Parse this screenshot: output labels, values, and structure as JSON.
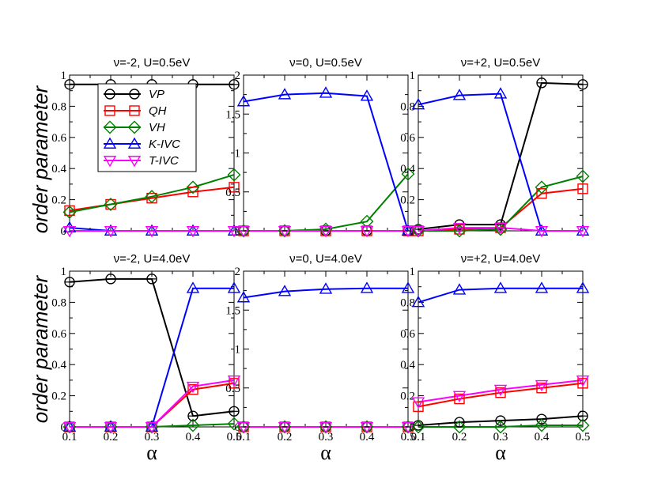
{
  "chart_data": {
    "type": "line",
    "x": [
      0.1,
      0.2,
      0.3,
      0.4,
      0.5
    ],
    "x_tick_labels": [
      "0.1",
      "0.2",
      "0.3",
      "0.4",
      "0.5"
    ],
    "xlabel": "α",
    "ylabel": "order parameter",
    "legend": {
      "placement": "top-left of first panel",
      "entries": [
        {
          "name": "VP",
          "color": "#000000",
          "marker": "circle"
        },
        {
          "name": "QH",
          "color": "#ff0000",
          "marker": "square"
        },
        {
          "name": "VH",
          "color": "#008000",
          "marker": "diamond"
        },
        {
          "name": "K-IVC",
          "color": "#0000ff",
          "marker": "triangle-up"
        },
        {
          "name": "T-IVC",
          "color": "#ff00ff",
          "marker": "triangle-down"
        }
      ]
    },
    "panels": [
      {
        "title": "ν=-2, U=0.5eV",
        "ylim": [
          0,
          1
        ],
        "y_ticks": [
          "0",
          "0.2",
          "0.4",
          "0.6",
          "0.8",
          "1"
        ],
        "y_tick_values": [
          0,
          0.2,
          0.4,
          0.6,
          0.8,
          1
        ],
        "series": [
          {
            "name": "VP",
            "values": [
              0.94,
              0.94,
              0.94,
              0.94,
              0.94
            ]
          },
          {
            "name": "QH",
            "values": [
              0.13,
              0.17,
              0.21,
              0.25,
              0.28
            ]
          },
          {
            "name": "VH",
            "values": [
              0.12,
              0.17,
              0.22,
              0.28,
              0.36
            ]
          },
          {
            "name": "K-IVC",
            "values": [
              0.02,
              0.0,
              0.0,
              0.0,
              0.0
            ]
          },
          {
            "name": "T-IVC",
            "values": [
              0.0,
              0.0,
              0.0,
              0.0,
              0.0
            ]
          }
        ]
      },
      {
        "title": "ν=0, U=0.5eV",
        "ylim": [
          0,
          2
        ],
        "y_ticks": [
          "0",
          "0.5",
          "1",
          "1.5",
          "2"
        ],
        "y_tick_values": [
          0,
          0.5,
          1,
          1.5,
          2
        ],
        "series": [
          {
            "name": "VP",
            "values": [
              0.0,
              0.0,
              0.0,
              0.0,
              0.0
            ]
          },
          {
            "name": "QH",
            "values": [
              0.0,
              0.0,
              0.0,
              0.0,
              0.0
            ]
          },
          {
            "name": "VH",
            "values": [
              0.0,
              0.0,
              0.02,
              0.12,
              0.73
            ]
          },
          {
            "name": "K-IVC",
            "values": [
              1.66,
              1.75,
              1.77,
              1.73,
              0.0
            ]
          },
          {
            "name": "T-IVC",
            "values": [
              0.0,
              0.0,
              0.0,
              0.0,
              0.0
            ]
          }
        ]
      },
      {
        "title": "ν=+2, U=0.5eV",
        "ylim": [
          0,
          1
        ],
        "y_ticks": [
          "0",
          "0.2",
          "0.4",
          "0.6",
          "0.8",
          "1"
        ],
        "y_tick_values": [
          0,
          0.2,
          0.4,
          0.6,
          0.8,
          1
        ],
        "series": [
          {
            "name": "VP",
            "values": [
              0.01,
              0.04,
              0.04,
              0.95,
              0.94
            ]
          },
          {
            "name": "QH",
            "values": [
              0.0,
              0.01,
              0.02,
              0.24,
              0.27
            ]
          },
          {
            "name": "VH",
            "values": [
              0.0,
              0.0,
              0.01,
              0.28,
              0.35
            ]
          },
          {
            "name": "K-IVC",
            "values": [
              0.81,
              0.87,
              0.88,
              0.0,
              0.0
            ]
          },
          {
            "name": "T-IVC",
            "values": [
              0.0,
              0.02,
              0.02,
              0.0,
              0.0
            ]
          }
        ]
      },
      {
        "title": "ν=-2, U=4.0eV",
        "ylim": [
          0,
          1
        ],
        "y_ticks": [
          "0",
          "0.2",
          "0.4",
          "0.6",
          "0.8",
          "1"
        ],
        "y_tick_values": [
          0,
          0.2,
          0.4,
          0.6,
          0.8,
          1
        ],
        "series": [
          {
            "name": "VP",
            "values": [
              0.93,
              0.95,
              0.95,
              0.07,
              0.1
            ]
          },
          {
            "name": "QH",
            "values": [
              0.0,
              0.0,
              0.0,
              0.24,
              0.28
            ]
          },
          {
            "name": "VH",
            "values": [
              0.0,
              0.0,
              0.0,
              0.01,
              0.02
            ]
          },
          {
            "name": "K-IVC",
            "values": [
              0.0,
              0.0,
              0.0,
              0.89,
              0.89
            ]
          },
          {
            "name": "T-IVC",
            "values": [
              0.0,
              0.0,
              0.0,
              0.26,
              0.3
            ]
          }
        ]
      },
      {
        "title": "ν=0, U=4.0eV",
        "ylim": [
          0,
          2
        ],
        "y_ticks": [
          "0",
          "0.5",
          "1",
          "1.5",
          "2"
        ],
        "y_tick_values": [
          0,
          0.5,
          1,
          1.5,
          2
        ],
        "series": [
          {
            "name": "VP",
            "values": [
              0.0,
              0.0,
              0.0,
              0.0,
              0.0
            ]
          },
          {
            "name": "QH",
            "values": [
              0.0,
              0.0,
              0.0,
              0.0,
              0.0
            ]
          },
          {
            "name": "VH",
            "values": [
              0.0,
              0.0,
              0.0,
              0.0,
              0.0
            ]
          },
          {
            "name": "K-IVC",
            "values": [
              1.66,
              1.74,
              1.77,
              1.78,
              1.78
            ]
          },
          {
            "name": "T-IVC",
            "values": [
              0.0,
              0.0,
              0.0,
              0.0,
              0.0
            ]
          }
        ]
      },
      {
        "title": "ν=+2, U=4.0eV",
        "ylim": [
          0,
          1
        ],
        "y_ticks": [
          "0",
          "0.2",
          "0.4",
          "0.6",
          "0.8",
          "1"
        ],
        "y_tick_values": [
          0,
          0.2,
          0.4,
          0.6,
          0.8,
          1
        ],
        "series": [
          {
            "name": "VP",
            "values": [
              0.01,
              0.03,
              0.04,
              0.05,
              0.07
            ]
          },
          {
            "name": "QH",
            "values": [
              0.13,
              0.18,
              0.22,
              0.25,
              0.28
            ]
          },
          {
            "name": "VH",
            "values": [
              0.0,
              0.0,
              0.0,
              0.01,
              0.01
            ]
          },
          {
            "name": "K-IVC",
            "values": [
              0.8,
              0.88,
              0.89,
              0.89,
              0.89
            ]
          },
          {
            "name": "T-IVC",
            "values": [
              0.16,
              0.2,
              0.24,
              0.27,
              0.3
            ]
          }
        ]
      }
    ]
  }
}
